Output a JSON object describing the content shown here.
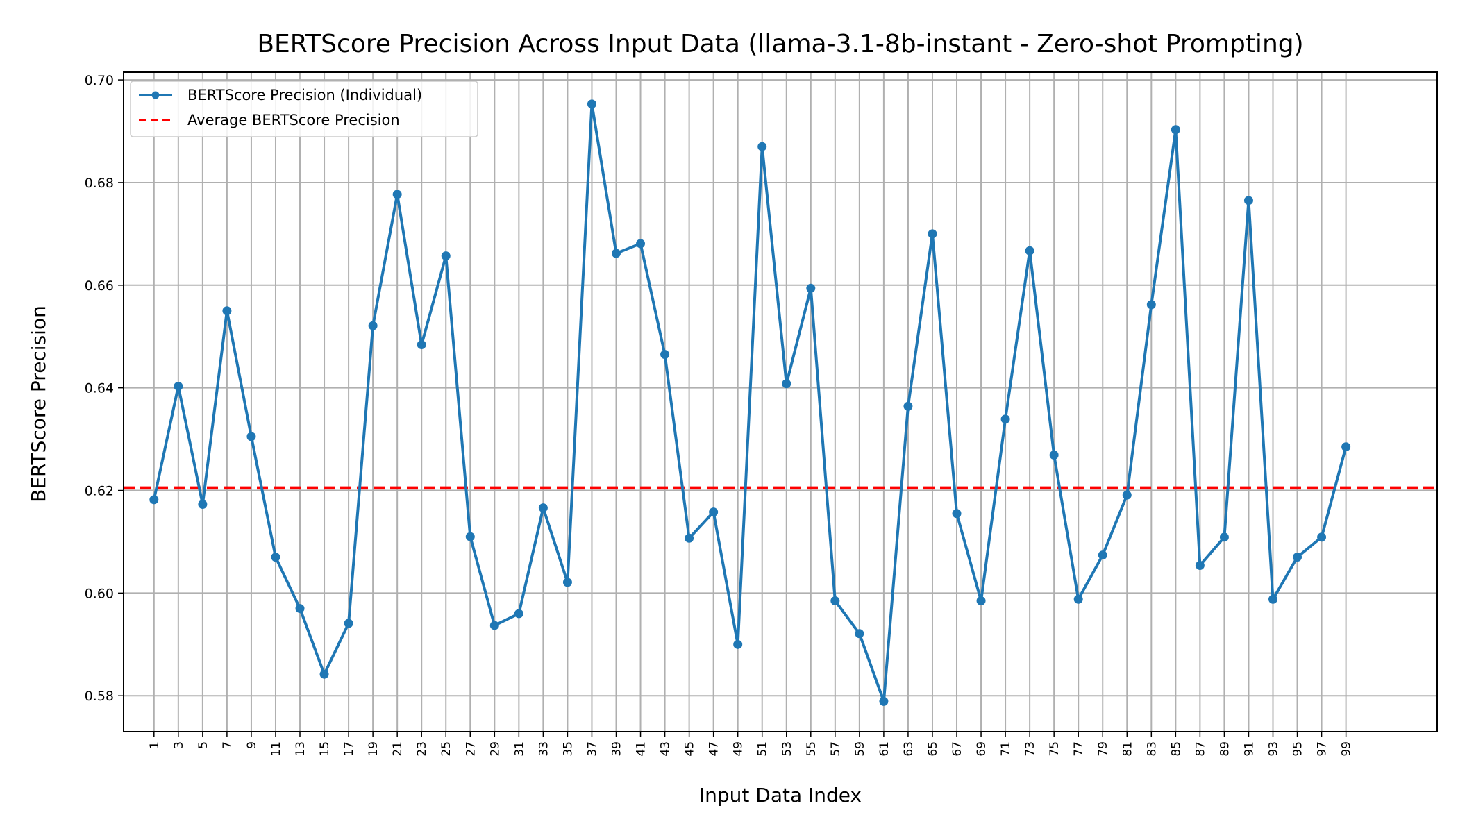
{
  "chart_data": {
    "type": "line",
    "title": "BERTScore Precision Across Input Data (llama-3.1-8b-instant - Zero-shot Prompting)",
    "xlabel": "Input Data Index",
    "ylabel": "BERTScore Precision",
    "ylim": [
      0.573,
      0.7015
    ],
    "xlim": [
      -1.5,
      106.5
    ],
    "grid": true,
    "legend_position": "upper-left",
    "y_ticks": [
      "0.58",
      "0.60",
      "0.62",
      "0.64",
      "0.66",
      "0.68",
      "0.70"
    ],
    "x_ticks": [
      "1",
      "3",
      "5",
      "7",
      "9",
      "11",
      "13",
      "15",
      "17",
      "19",
      "21",
      "23",
      "25",
      "27",
      "29",
      "31",
      "33",
      "35",
      "37",
      "39",
      "41",
      "43",
      "45",
      "47",
      "49",
      "51",
      "53",
      "55",
      "57",
      "59",
      "61",
      "63",
      "65",
      "67",
      "69",
      "71",
      "73",
      "75",
      "77",
      "79",
      "81",
      "83",
      "85",
      "87",
      "89",
      "91",
      "93",
      "95",
      "97",
      "99"
    ],
    "series": [
      {
        "name": "BERTScore Precision (Individual)",
        "color": "#1f77b4",
        "x": [
          1,
          3,
          5,
          7,
          9,
          11,
          13,
          15,
          17,
          19,
          21,
          23,
          25,
          27,
          29,
          31,
          33,
          35,
          37,
          39,
          41,
          43,
          45,
          47,
          49,
          51,
          53,
          55,
          57,
          59,
          61,
          63,
          65,
          67,
          69,
          71,
          73,
          75,
          77,
          79,
          81,
          83,
          85,
          87,
          89,
          91,
          93,
          95,
          97,
          99
        ],
        "values": [
          0.6182,
          0.6403,
          0.6173,
          0.655,
          0.6305,
          0.607,
          0.597,
          0.5842,
          0.5941,
          0.6521,
          0.6777,
          0.6484,
          0.6657,
          0.611,
          0.5937,
          0.596,
          0.6166,
          0.6021,
          0.6953,
          0.6662,
          0.6681,
          0.6465,
          0.6107,
          0.6158,
          0.59,
          0.687,
          0.6408,
          0.6594,
          0.5985,
          0.5921,
          0.5789,
          0.6364,
          0.67,
          0.6155,
          0.5985,
          0.6339,
          0.6667,
          0.6269,
          0.5988,
          0.6074,
          0.6191,
          0.6562,
          0.6903,
          0.6054,
          0.6109,
          0.6765,
          0.5988,
          0.607,
          0.6109,
          0.6285
        ]
      },
      {
        "name": "Average BERTScore Precision",
        "color": "#ff0000",
        "style": "dashed",
        "value": 0.6205
      }
    ]
  }
}
